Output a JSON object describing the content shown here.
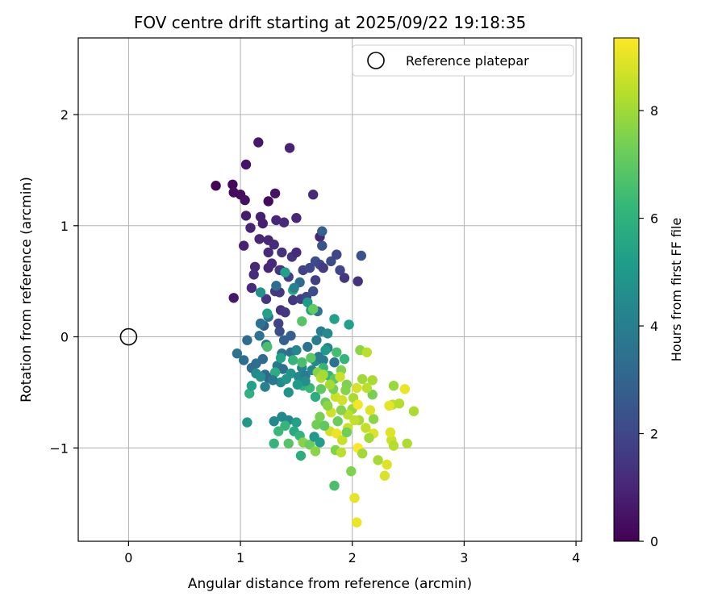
{
  "chart_data": {
    "type": "scatter",
    "title": "FOV centre drift starting at 2025/09/22 19:18:35",
    "xlabel": "Angular distance from reference (arcmin)",
    "ylabel": "Rotation from reference (arcmin)",
    "xlim": [
      -0.45,
      4.05
    ],
    "ylim": [
      -1.84,
      2.69
    ],
    "xticks": [
      0,
      1,
      2,
      3,
      4
    ],
    "yticks": [
      -1,
      0,
      1,
      2
    ],
    "grid": true,
    "legend_position": "top-right",
    "reference": {
      "label": "Reference platepar",
      "x": 0,
      "y": 0
    },
    "colorbar": {
      "label": "Hours from first FF file",
      "range": [
        0,
        9.35
      ],
      "ticks": [
        0,
        2,
        4,
        6,
        8
      ],
      "colormap": [
        "#440154",
        "#482878",
        "#3e4a89",
        "#31688e",
        "#26828e",
        "#1f9e89",
        "#35b779",
        "#6ece58",
        "#b5de2b",
        "#fde725"
      ]
    },
    "points": [
      [
        0.78,
        1.36,
        0.1
      ],
      [
        0.93,
        1.37,
        0.2
      ],
      [
        0.94,
        1.3,
        0.3
      ],
      [
        1.0,
        1.28,
        0.3
      ],
      [
        1.04,
        1.23,
        0.4
      ],
      [
        1.16,
        1.75,
        0.6
      ],
      [
        1.44,
        1.7,
        0.9
      ],
      [
        1.05,
        1.55,
        0.5
      ],
      [
        1.25,
        1.22,
        0.3
      ],
      [
        1.31,
        1.29,
        0.5
      ],
      [
        1.65,
        1.28,
        1.1
      ],
      [
        1.05,
        1.09,
        0.7
      ],
      [
        1.18,
        1.08,
        0.8
      ],
      [
        1.2,
        1.02,
        0.8
      ],
      [
        1.32,
        1.05,
        1.0
      ],
      [
        1.39,
        1.03,
        1.1
      ],
      [
        1.5,
        1.07,
        1.0
      ],
      [
        1.09,
        0.98,
        0.9
      ],
      [
        1.03,
        0.82,
        0.9
      ],
      [
        1.17,
        0.88,
        1.0
      ],
      [
        1.25,
        0.87,
        1.0
      ],
      [
        1.3,
        0.83,
        1.2
      ],
      [
        1.25,
        0.76,
        1.1
      ],
      [
        1.37,
        0.76,
        1.3
      ],
      [
        1.46,
        0.72,
        1.4
      ],
      [
        1.5,
        0.76,
        1.2
      ],
      [
        1.13,
        0.63,
        1.0
      ],
      [
        1.12,
        0.56,
        1.2
      ],
      [
        1.25,
        0.62,
        1.0
      ],
      [
        1.28,
        0.66,
        1.1
      ],
      [
        1.36,
        0.6,
        1.4
      ],
      [
        1.43,
        0.54,
        1.7
      ],
      [
        1.56,
        0.6,
        1.9
      ],
      [
        1.62,
        0.62,
        2.0
      ],
      [
        1.67,
        0.68,
        2.2
      ],
      [
        1.71,
        0.65,
        2.0
      ],
      [
        1.74,
        0.62,
        1.6
      ],
      [
        1.81,
        0.68,
        2.1
      ],
      [
        1.86,
        0.74,
        2.0
      ],
      [
        1.89,
        0.6,
        2.0
      ],
      [
        1.93,
        0.53,
        1.5
      ],
      [
        2.05,
        0.5,
        1.3
      ],
      [
        2.08,
        0.73,
        2.4
      ],
      [
        1.71,
        0.9,
        1.0
      ],
      [
        1.73,
        0.82,
        2.4
      ],
      [
        1.73,
        0.95,
        2.9
      ],
      [
        1.1,
        0.44,
        1.1
      ],
      [
        1.23,
        0.34,
        1.4
      ],
      [
        1.31,
        0.41,
        1.6
      ],
      [
        1.35,
        0.4,
        1.5
      ],
      [
        1.36,
        0.24,
        1.3
      ],
      [
        1.4,
        0.22,
        1.5
      ],
      [
        1.47,
        0.33,
        1.5
      ],
      [
        1.54,
        0.34,
        1.7
      ],
      [
        1.59,
        0.36,
        2.0
      ],
      [
        1.65,
        0.41,
        2.2
      ],
      [
        1.53,
        0.49,
        3.2
      ],
      [
        1.67,
        0.51,
        1.7
      ],
      [
        0.94,
        0.35,
        0.6
      ],
      [
        1.45,
        0.01,
        2.8
      ],
      [
        1.35,
        0.05,
        2.2
      ],
      [
        1.34,
        0.12,
        1.9
      ],
      [
        1.39,
        -0.03,
        2.8
      ],
      [
        1.25,
        0.18,
        3.5
      ],
      [
        1.21,
        0.1,
        2.7
      ],
      [
        1.18,
        0.12,
        3.5
      ],
      [
        1.17,
        0.01,
        3.5
      ],
      [
        1.23,
        -0.07,
        3.6
      ],
      [
        1.37,
        -0.15,
        3.5
      ],
      [
        1.45,
        -0.14,
        3.4
      ],
      [
        1.5,
        -0.12,
        4.3
      ],
      [
        1.6,
        -0.09,
        3.6
      ],
      [
        1.72,
        0.05,
        4.0
      ],
      [
        1.68,
        -0.03,
        3.9
      ],
      [
        1.78,
        0.03,
        4.5
      ],
      [
        1.2,
        -0.2,
        3.2
      ],
      [
        1.14,
        -0.24,
        3.4
      ],
      [
        1.1,
        -0.28,
        3.3
      ],
      [
        1.03,
        -0.21,
        3.3
      ],
      [
        0.97,
        -0.15,
        3.5
      ],
      [
        1.06,
        -0.03,
        3.3
      ],
      [
        1.22,
        -0.34,
        3.2
      ],
      [
        1.25,
        -0.37,
        3.1
      ],
      [
        1.33,
        -0.26,
        3.8
      ],
      [
        1.38,
        -0.29,
        3.4
      ],
      [
        1.45,
        -0.33,
        4.8
      ],
      [
        1.52,
        -0.36,
        4.4
      ],
      [
        1.55,
        -0.28,
        4.1
      ],
      [
        1.58,
        -0.35,
        3.9
      ],
      [
        1.64,
        -0.3,
        4.3
      ],
      [
        1.67,
        -0.22,
        4.4
      ],
      [
        1.7,
        -0.18,
        3.9
      ],
      [
        1.74,
        -0.21,
        4.0
      ],
      [
        1.78,
        -0.1,
        4.1
      ],
      [
        1.84,
        -0.23,
        3.5
      ],
      [
        1.63,
        0.24,
        5.4
      ],
      [
        1.69,
        0.23,
        3.5
      ],
      [
        1.55,
        0.14,
        6.8
      ],
      [
        1.6,
        0.31,
        5.1
      ],
      [
        1.65,
        0.25,
        7.1
      ],
      [
        1.47,
        0.42,
        5.7
      ],
      [
        1.32,
        0.46,
        3.3
      ],
      [
        1.18,
        0.4,
        4.8
      ],
      [
        1.48,
        0.44,
        4.1
      ],
      [
        1.24,
        0.21,
        5.3
      ],
      [
        1.35,
        0.6,
        1.5
      ],
      [
        1.4,
        0.58,
        5.3
      ],
      [
        1.84,
        0.16,
        5.3
      ],
      [
        1.97,
        0.11,
        5.3
      ],
      [
        1.76,
        -0.12,
        5.1
      ],
      [
        1.86,
        -0.14,
        6.5
      ],
      [
        1.93,
        -0.2,
        6.2
      ],
      [
        1.24,
        -0.09,
        6.6
      ],
      [
        1.36,
        -0.19,
        5.4
      ],
      [
        1.31,
        -0.32,
        5.8
      ],
      [
        1.47,
        -0.21,
        6.1
      ],
      [
        1.55,
        -0.23,
        6.6
      ],
      [
        1.63,
        -0.19,
        6.9
      ],
      [
        1.74,
        -0.28,
        6.1
      ],
      [
        1.79,
        -0.35,
        6.2
      ],
      [
        1.84,
        -0.38,
        6.9
      ],
      [
        1.9,
        -0.3,
        7.5
      ],
      [
        1.95,
        -0.43,
        7.5
      ],
      [
        1.43,
        -0.5,
        4.8
      ],
      [
        1.56,
        -0.44,
        5.9
      ],
      [
        1.62,
        -0.46,
        6.3
      ],
      [
        1.67,
        -0.54,
        5.8
      ],
      [
        1.76,
        -0.59,
        7.2
      ],
      [
        1.85,
        -0.54,
        8.6
      ],
      [
        1.91,
        -0.57,
        8.7
      ],
      [
        2.01,
        -0.55,
        8.1
      ],
      [
        1.08,
        -0.51,
        6.0
      ],
      [
        1.1,
        -0.44,
        5.3
      ],
      [
        1.14,
        -0.33,
        4.5
      ],
      [
        1.06,
        -0.77,
        5.0
      ],
      [
        1.3,
        -0.76,
        4.4
      ],
      [
        1.37,
        -0.72,
        4.4
      ],
      [
        1.43,
        -0.75,
        4.3
      ],
      [
        1.4,
        -0.8,
        6.2
      ],
      [
        1.5,
        -0.77,
        5.3
      ],
      [
        1.48,
        -0.85,
        5.6
      ],
      [
        1.53,
        -0.89,
        6.1
      ],
      [
        1.34,
        -0.85,
        6.3
      ],
      [
        1.3,
        -0.96,
        6.1
      ],
      [
        1.43,
        -0.96,
        6.8
      ],
      [
        1.56,
        -0.95,
        7.6
      ],
      [
        1.62,
        -0.97,
        7.2
      ],
      [
        1.66,
        -0.9,
        5.0
      ],
      [
        1.71,
        -0.95,
        5.2
      ],
      [
        1.54,
        -1.07,
        5.8
      ],
      [
        1.67,
        -1.03,
        7.7
      ],
      [
        1.8,
        -0.85,
        8.7
      ],
      [
        1.86,
        -0.87,
        9.1
      ],
      [
        1.91,
        -0.93,
        8.6
      ],
      [
        1.96,
        -0.82,
        8.6
      ],
      [
        1.85,
        -1.02,
        7.5
      ],
      [
        1.9,
        -1.04,
        8.4
      ],
      [
        1.99,
        -1.21,
        7.5
      ],
      [
        1.84,
        -1.34,
        6.6
      ],
      [
        2.02,
        -1.45,
        9.0
      ],
      [
        2.04,
        -1.67,
        9.1
      ],
      [
        2.05,
        -1.0,
        9.3
      ],
      [
        2.09,
        -1.05,
        8.0
      ],
      [
        2.06,
        -0.75,
        8.1
      ],
      [
        2.12,
        -0.82,
        8.5
      ],
      [
        2.19,
        -0.74,
        7.7
      ],
      [
        2.16,
        -0.66,
        8.9
      ],
      [
        2.19,
        -0.87,
        8.9
      ],
      [
        2.23,
        -1.11,
        8.1
      ],
      [
        2.31,
        -1.15,
        8.9
      ],
      [
        2.29,
        -1.25,
        8.8
      ],
      [
        2.35,
        -0.93,
        8.6
      ],
      [
        2.37,
        -0.98,
        8.3
      ],
      [
        2.34,
        -0.86,
        8.9
      ],
      [
        2.36,
        -0.61,
        8.4
      ],
      [
        2.33,
        -0.62,
        9.0
      ],
      [
        2.42,
        -0.6,
        8.3
      ],
      [
        2.37,
        -0.44,
        7.9
      ],
      [
        2.47,
        -0.47,
        9.1
      ],
      [
        2.55,
        -0.67,
        8.2
      ],
      [
        2.49,
        -0.96,
        8.2
      ],
      [
        2.18,
        -0.52,
        7.4
      ],
      [
        2.13,
        -0.46,
        8.4
      ],
      [
        2.18,
        -0.39,
        8.1
      ],
      [
        2.09,
        -0.38,
        8.0
      ],
      [
        2.04,
        -0.46,
        8.8
      ],
      [
        2.07,
        -0.12,
        7.7
      ],
      [
        2.13,
        -0.14,
        8.4
      ],
      [
        2.0,
        -0.65,
        7.9
      ],
      [
        2.05,
        -0.61,
        9.2
      ],
      [
        2.02,
        -0.75,
        8.5
      ],
      [
        1.96,
        -0.7,
        8.4
      ],
      [
        1.9,
        -0.66,
        7.6
      ],
      [
        1.87,
        -0.76,
        7.2
      ],
      [
        1.81,
        -0.68,
        8.7
      ],
      [
        1.71,
        -0.72,
        7.4
      ],
      [
        1.68,
        -0.79,
        7.3
      ],
      [
        1.75,
        -0.8,
        7.0
      ],
      [
        1.95,
        -0.86,
        7.3
      ],
      [
        2.15,
        -0.91,
        8.0
      ],
      [
        1.94,
        -0.48,
        7.6
      ],
      [
        1.83,
        -0.47,
        7.4
      ],
      [
        1.72,
        -0.47,
        7.0
      ],
      [
        1.78,
        -0.62,
        7.7
      ],
      [
        1.69,
        -0.32,
        7.6
      ],
      [
        1.72,
        -0.37,
        8.3
      ],
      [
        1.8,
        -0.43,
        8.1
      ],
      [
        1.89,
        -0.36,
        8.6
      ],
      [
        1.74,
        -0.34,
        8.1
      ],
      [
        1.36,
        -0.41,
        4.5
      ],
      [
        1.41,
        -0.38,
        4.9
      ],
      [
        1.58,
        -0.4,
        4.6
      ],
      [
        1.51,
        -0.43,
        5.1
      ],
      [
        1.18,
        -0.36,
        4.7
      ],
      [
        1.29,
        -0.39,
        3.7
      ],
      [
        1.22,
        -0.45,
        4.1
      ]
    ]
  }
}
